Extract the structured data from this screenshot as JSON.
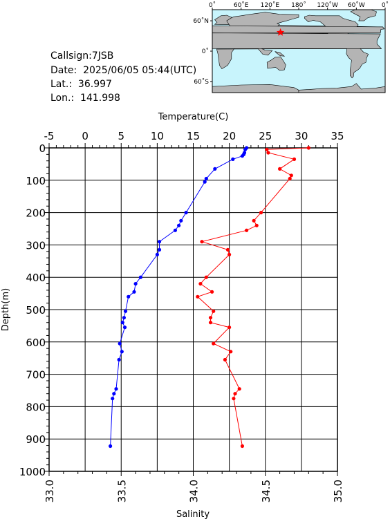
{
  "station": {
    "callsign": "Callsign:7JSB",
    "date": "Date:  2025/06/05 05:44(UTC)",
    "lat": "Lat.:  36.997",
    "lon": "Lon.:  141.998"
  },
  "map": {
    "lon_labels": [
      "0˚",
      "60˚E",
      "120˚E",
      "180˚",
      "120˚W",
      "60˚W",
      "0˚"
    ],
    "lat_labels": [
      "60˚N",
      "0˚",
      "60˚S"
    ],
    "ocean_color": "#c8f4fc",
    "land_color": "#b4b4b4",
    "marker": {
      "lat": 36.997,
      "lon": 141.998,
      "color": "#ff0000",
      "symbol": "star"
    }
  },
  "chart_data": {
    "type": "line",
    "title": "",
    "ylabel": "Depth(m)",
    "ylim": [
      0,
      1000
    ],
    "y_ticks": [
      0,
      100,
      200,
      300,
      400,
      500,
      600,
      700,
      800,
      900,
      1000
    ],
    "y_inverted": true,
    "grid": true,
    "top_axis": {
      "label": "Temperature(C)",
      "range": [
        -5,
        35
      ],
      "ticks": [
        -5,
        0,
        5,
        10,
        15,
        20,
        25,
        30,
        35
      ]
    },
    "bottom_axis": {
      "label": "Salinity",
      "range": [
        33.0,
        35.0
      ],
      "ticks": [
        "33.0",
        "33.5",
        "34.0",
        "34.5",
        "35.0"
      ]
    },
    "series": [
      {
        "name": "Temperature(C)",
        "axis": "top",
        "color": "#0000ff",
        "points": [
          [
            22.4,
            0
          ],
          [
            22.2,
            5
          ],
          [
            22.1,
            15
          ],
          [
            22.0,
            20
          ],
          [
            21.8,
            25
          ],
          [
            20.5,
            35
          ],
          [
            18.0,
            65
          ],
          [
            16.8,
            95
          ],
          [
            16.6,
            105
          ],
          [
            14.0,
            200
          ],
          [
            13.3,
            225
          ],
          [
            13.0,
            240
          ],
          [
            12.5,
            255
          ],
          [
            10.3,
            290
          ],
          [
            10.3,
            315
          ],
          [
            10.0,
            330
          ],
          [
            7.7,
            400
          ],
          [
            7.0,
            420
          ],
          [
            6.8,
            445
          ],
          [
            6.0,
            460
          ],
          [
            5.6,
            505
          ],
          [
            5.4,
            525
          ],
          [
            5.2,
            540
          ],
          [
            5.5,
            555
          ],
          [
            4.8,
            605
          ],
          [
            5.1,
            630
          ],
          [
            4.7,
            655
          ],
          [
            4.3,
            745
          ],
          [
            4.0,
            760
          ],
          [
            3.8,
            775
          ],
          [
            3.5,
            922
          ]
        ]
      },
      {
        "name": "Salinity",
        "axis": "bottom",
        "color": "#ff0000",
        "points": [
          [
            34.8,
            0
          ],
          [
            34.51,
            5
          ],
          [
            34.52,
            15
          ],
          [
            34.7,
            35
          ],
          [
            34.6,
            65
          ],
          [
            34.68,
            85
          ],
          [
            34.67,
            95
          ],
          [
            34.47,
            200
          ],
          [
            34.42,
            225
          ],
          [
            34.44,
            240
          ],
          [
            34.37,
            255
          ],
          [
            34.06,
            290
          ],
          [
            34.24,
            315
          ],
          [
            34.25,
            330
          ],
          [
            34.09,
            400
          ],
          [
            34.05,
            420
          ],
          [
            34.13,
            445
          ],
          [
            34.03,
            460
          ],
          [
            34.14,
            505
          ],
          [
            34.12,
            525
          ],
          [
            34.12,
            540
          ],
          [
            34.25,
            555
          ],
          [
            34.14,
            605
          ],
          [
            34.26,
            630
          ],
          [
            34.22,
            655
          ],
          [
            34.32,
            745
          ],
          [
            34.29,
            760
          ],
          [
            34.28,
            775
          ],
          [
            34.34,
            922
          ]
        ]
      }
    ]
  }
}
